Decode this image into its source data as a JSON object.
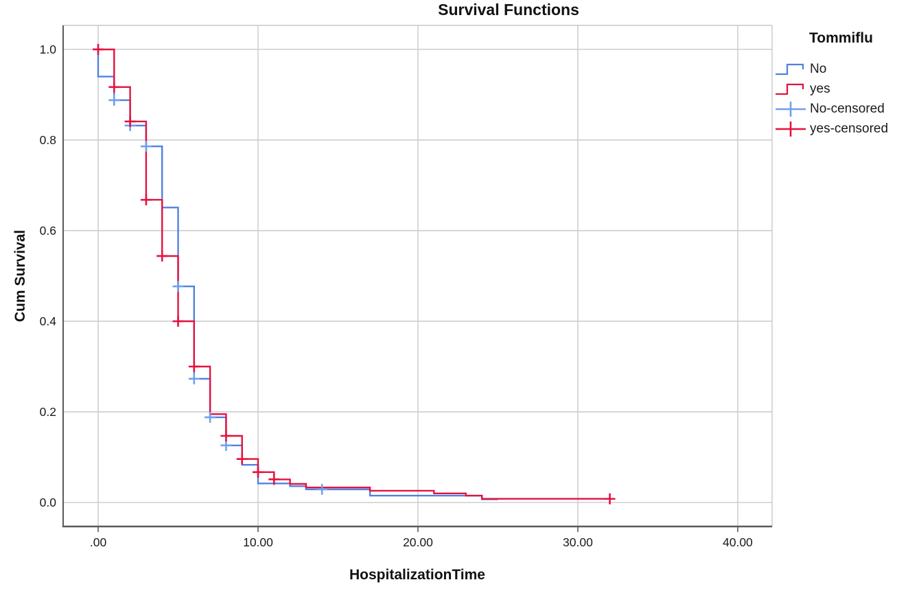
{
  "figure": {
    "title": "Survival Functions"
  },
  "axes": {
    "x": {
      "title": "HospitalizationTime",
      "domain": [
        -2.19,
        42.15
      ],
      "ticks": [
        {
          "v": 0,
          "label": ".00"
        },
        {
          "v": 10,
          "label": "10.00"
        },
        {
          "v": 20,
          "label": "20.00"
        },
        {
          "v": 30,
          "label": "30.00"
        },
        {
          "v": 40,
          "label": "40.00"
        }
      ]
    },
    "y": {
      "title": "Cum Survival",
      "domain": [
        -0.053,
        1.053
      ],
      "ticks": [
        {
          "v": 0.0,
          "label": "0.0"
        },
        {
          "v": 0.2,
          "label": "0.2"
        },
        {
          "v": 0.4,
          "label": "0.4"
        },
        {
          "v": 0.6,
          "label": "0.6"
        },
        {
          "v": 0.8,
          "label": "0.8"
        },
        {
          "v": 1.0,
          "label": "1.0"
        }
      ]
    }
  },
  "legend": {
    "title": "Tommiflu",
    "items": [
      {
        "label": "No",
        "type": "step-line",
        "color": "#5180E0"
      },
      {
        "label": "yes",
        "type": "step-line",
        "color": "#E3123E"
      },
      {
        "label": "No-censored",
        "type": "censor",
        "color": "#6FA0EC"
      },
      {
        "label": "yes-censored",
        "type": "censor",
        "color": "#E3123E"
      }
    ]
  },
  "colors": {
    "blue_line": "#5180E0",
    "blue_censor": "#6FA0EC",
    "red_line": "#E3123E",
    "red_censor": "#E3123E",
    "gridline": "#C9C9C9",
    "axis_line": "#58595B",
    "text": "#1a1a1a"
  },
  "chart_data": {
    "type": "line",
    "subtype": "kaplan-meier-step",
    "title": "Survival Functions",
    "xlabel": "HospitalizationTime",
    "ylabel": "Cum Survival",
    "xlim": [
      -2.19,
      42.15
    ],
    "ylim": [
      -0.053,
      1.053
    ],
    "grid": true,
    "legend_position": "right",
    "series": [
      {
        "name": "No",
        "color": "#5180E0",
        "end_time": 25,
        "steps": [
          [
            0,
            1.0
          ],
          [
            0,
            0.94
          ],
          [
            1,
            0.888
          ],
          [
            2,
            0.832
          ],
          [
            3,
            0.786
          ],
          [
            4,
            0.651
          ],
          [
            5,
            0.477
          ],
          [
            6,
            0.273
          ],
          [
            7,
            0.188
          ],
          [
            8,
            0.126
          ],
          [
            9,
            0.083
          ],
          [
            10,
            0.042
          ],
          [
            12,
            0.036
          ],
          [
            13,
            0.029
          ],
          [
            17,
            0.015
          ],
          [
            24,
            0.007
          ]
        ]
      },
      {
        "name": "yes",
        "color": "#E3123E",
        "end_time": 32,
        "steps": [
          [
            0,
            1.0
          ],
          [
            1,
            0.917
          ],
          [
            2,
            0.841
          ],
          [
            3,
            0.668
          ],
          [
            4,
            0.544
          ],
          [
            5,
            0.4
          ],
          [
            6,
            0.3
          ],
          [
            7,
            0.195
          ],
          [
            8,
            0.147
          ],
          [
            9,
            0.096
          ],
          [
            10,
            0.067
          ],
          [
            11,
            0.051
          ],
          [
            12,
            0.041
          ],
          [
            13,
            0.033
          ],
          [
            17,
            0.026
          ],
          [
            21,
            0.02
          ],
          [
            23,
            0.015
          ],
          [
            24,
            0.008
          ]
        ]
      }
    ],
    "censored": [
      {
        "name": "No-censored",
        "color": "#6FA0EC",
        "points": [
          [
            1,
            0.888
          ],
          [
            2,
            0.832
          ],
          [
            3,
            0.786
          ],
          [
            5,
            0.477
          ],
          [
            6,
            0.273
          ],
          [
            7,
            0.188
          ],
          [
            8,
            0.126
          ],
          [
            14,
            0.029
          ]
        ]
      },
      {
        "name": "yes-censored",
        "color": "#E3123E",
        "points": [
          [
            0,
            1.0
          ],
          [
            1,
            0.917
          ],
          [
            2,
            0.841
          ],
          [
            3,
            0.668
          ],
          [
            4,
            0.544
          ],
          [
            5,
            0.4
          ],
          [
            6,
            0.3
          ],
          [
            8,
            0.147
          ],
          [
            9,
            0.096
          ],
          [
            10,
            0.067
          ],
          [
            11,
            0.051
          ],
          [
            32,
            0.008
          ]
        ]
      }
    ]
  }
}
